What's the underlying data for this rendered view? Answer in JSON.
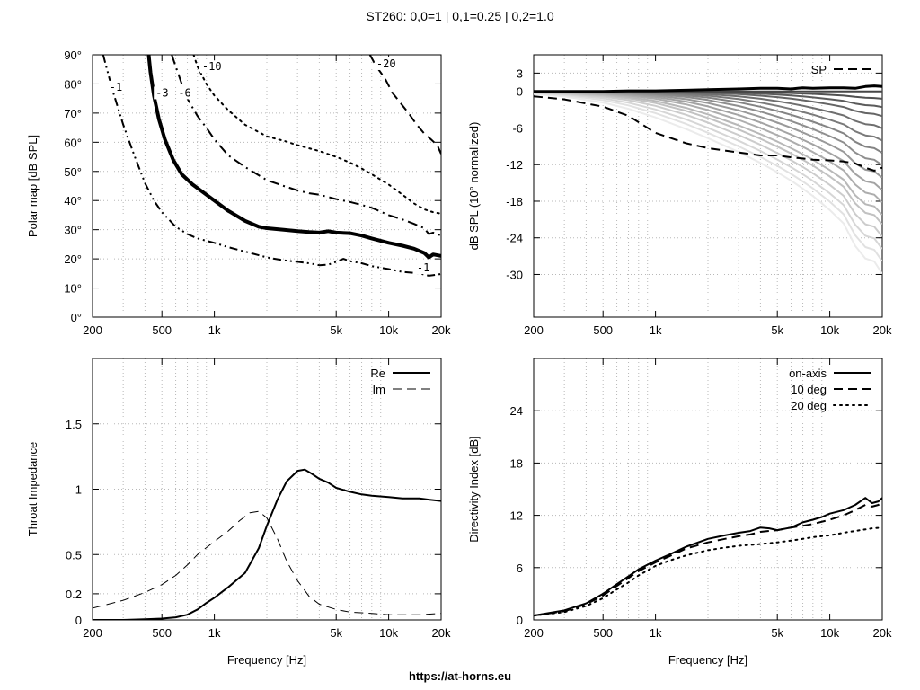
{
  "title": "ST260: 0,0=1 | 0,1=0.25 | 0,2=1.0",
  "footer": "https://at-horns.eu",
  "chart_data": [
    {
      "id": "polar",
      "type": "line",
      "ylabel": "Polar map [dB SPL]",
      "xlabel": "",
      "xscale": "log",
      "xlim": [
        200,
        20000
      ],
      "ylim": [
        0,
        90
      ],
      "xticks": [
        200,
        500,
        1000,
        5000,
        10000,
        20000
      ],
      "xtick_labels": [
        "200",
        "500",
        "1k",
        "5k",
        "10k",
        "20k"
      ],
      "yticks": [
        0,
        10,
        20,
        30,
        40,
        50,
        60,
        70,
        80,
        90
      ],
      "ytick_labels": [
        "0°",
        "10°",
        "20°",
        "30°",
        "40°",
        "50°",
        "60°",
        "70°",
        "80°",
        "90°"
      ],
      "series": [
        {
          "label": "-1",
          "style": "dashdotdot",
          "width": 2,
          "x": [
            230,
            260,
            300,
            350,
            400,
            450,
            500,
            600,
            700,
            800,
            1000,
            1200,
            1500,
            2000,
            2500,
            3000,
            3500,
            4000,
            4500,
            5000,
            5500,
            6000,
            7000,
            8000,
            10000,
            12000,
            15000,
            17000,
            20000
          ],
          "y": [
            90,
            78,
            66,
            55,
            46,
            40,
            36,
            31,
            28.5,
            27,
            25.5,
            24,
            22.5,
            20.5,
            19.5,
            19,
            18.5,
            17.8,
            18,
            19,
            20,
            19.2,
            18.5,
            17.5,
            16.5,
            15.5,
            15,
            14.2,
            14.8
          ]
        },
        {
          "label": "-3",
          "style": "solid",
          "width": 4,
          "x": [
            420,
            430,
            450,
            480,
            520,
            580,
            650,
            750,
            900,
            1000,
            1200,
            1500,
            1800,
            2000,
            2500,
            3000,
            3500,
            4000,
            4500,
            5000,
            6000,
            7000,
            8000,
            10000,
            12000,
            14000,
            16000,
            17000,
            18000,
            20000
          ],
          "y": [
            90,
            84,
            76,
            68,
            61,
            54,
            49,
            45.5,
            42,
            40,
            36.5,
            33,
            31,
            30.5,
            30,
            29.5,
            29.2,
            29,
            29.5,
            29,
            28.8,
            28,
            27,
            25.5,
            24.5,
            23.5,
            22,
            20.5,
            21.5,
            21
          ]
        },
        {
          "label": "-6",
          "style": "dashdot",
          "width": 2,
          "x": [
            570,
            600,
            650,
            700,
            800,
            900,
            1000,
            1200,
            1500,
            2000,
            2500,
            3000,
            3500,
            4000,
            5000,
            6000,
            7000,
            8000,
            10000,
            12000,
            14000,
            16000,
            17000,
            18000,
            20000
          ],
          "y": [
            90,
            86,
            80,
            75,
            69,
            65,
            61,
            55.5,
            51.5,
            47,
            45,
            43.5,
            42.5,
            42,
            40.5,
            39.5,
            38.5,
            37.5,
            35,
            33.5,
            32,
            30.5,
            28.5,
            29,
            28
          ]
        },
        {
          "label": "-10",
          "style": "dotted",
          "width": 2,
          "x": [
            760,
            800,
            900,
            1000,
            1200,
            1500,
            2000,
            2500,
            3000,
            4000,
            5000,
            6000,
            7000,
            8000,
            10000,
            12000,
            14000,
            16000,
            18000,
            20000
          ],
          "y": [
            90,
            86,
            80,
            76,
            71,
            66,
            62,
            60.5,
            59,
            57,
            55,
            53,
            51,
            49,
            45.5,
            42,
            39,
            37,
            36,
            35.5
          ]
        },
        {
          "label": "-20",
          "style": "dashed",
          "width": 2,
          "x": [
            7800,
            8500,
            9500,
            10500,
            11500,
            13000,
            14500,
            16000,
            17500,
            19000,
            20000
          ],
          "y": [
            90,
            86,
            82,
            77,
            74,
            70,
            66,
            63,
            61,
            59,
            56
          ]
        }
      ],
      "contour_labels": [
        {
          "text": "-1",
          "x": 250,
          "y": 78
        },
        {
          "text": "-3",
          "x": 460,
          "y": 76
        },
        {
          "text": "-6",
          "x": 620,
          "y": 76
        },
        {
          "text": "-10",
          "x": 850,
          "y": 85
        },
        {
          "text": "-20",
          "x": 8500,
          "y": 86
        },
        {
          "text": "-1",
          "x": 14500,
          "y": 16
        }
      ]
    },
    {
      "id": "spl",
      "type": "line",
      "ylabel": "dB SPL (10° normalized)",
      "xlabel": "",
      "xscale": "log",
      "xlim": [
        200,
        20000
      ],
      "ylim": [
        -37,
        6
      ],
      "xticks": [
        200,
        500,
        1000,
        5000,
        10000,
        20000
      ],
      "xtick_labels": [
        "200",
        "500",
        "1k",
        "5k",
        "10k",
        "20k"
      ],
      "yticks": [
        3,
        0,
        -6,
        -12,
        -18,
        -24,
        -30
      ],
      "ytick_labels": [
        "3",
        "0",
        "-6",
        "-12",
        "-18",
        "-24",
        "-30"
      ],
      "legend": {
        "placement": "top-right",
        "entries": [
          "SP"
        ]
      },
      "x": [
        200,
        300,
        500,
        700,
        1000,
        1500,
        2000,
        3000,
        4000,
        5000,
        6000,
        7000,
        8000,
        10000,
        12000,
        14000,
        16000,
        18000,
        20000
      ],
      "angle_curves": {
        "angles_deg": [
          0,
          10,
          15,
          20,
          25,
          30,
          35,
          40,
          45,
          50,
          55,
          60,
          65,
          70,
          75,
          80,
          85,
          90
        ],
        "end_values_db": [
          0.8,
          0,
          -1.5,
          -3,
          -4.5,
          -6.5,
          -8.5,
          -10.5,
          -12.5,
          -14.5,
          -16.5,
          -18.5,
          -20.5,
          -22,
          -24,
          -26,
          -28,
          -30
        ],
        "knee_hz": [
          100000,
          100000,
          12000,
          9000,
          7000,
          5500,
          4500,
          3800,
          3200,
          2700,
          2300,
          2000,
          1700,
          1500,
          1300,
          1100,
          950,
          800
        ]
      },
      "series": [
        {
          "name": "SP",
          "style": "dashed",
          "width": 2,
          "y": [
            -0.8,
            -1.3,
            -2.5,
            -4,
            -6.8,
            -8.5,
            -9.3,
            -10,
            -10.5,
            -10.5,
            -10.8,
            -11,
            -11.2,
            -11.3,
            -11.5,
            -11.8,
            -12.5,
            -13,
            -12.5
          ]
        },
        {
          "name": "0°",
          "style": "solid",
          "width": 3,
          "y": [
            0,
            0,
            0,
            0.1,
            0.1,
            0.2,
            0.3,
            0.4,
            0.5,
            0.5,
            0.4,
            0.6,
            0.5,
            0.6,
            0.6,
            0.5,
            0.8,
            0.9,
            0.8
          ]
        }
      ]
    },
    {
      "id": "impedance",
      "type": "line",
      "ylabel": "Throat Impedance",
      "xlabel": "Frequency [Hz]",
      "xscale": "log",
      "xlim": [
        200,
        20000
      ],
      "ylim": [
        0,
        2
      ],
      "xticks": [
        200,
        500,
        1000,
        5000,
        10000,
        20000
      ],
      "xtick_labels": [
        "200",
        "500",
        "1k",
        "5k",
        "10k",
        "20k"
      ],
      "yticks": [
        0,
        0.2,
        0.5,
        1,
        1.5
      ],
      "ytick_labels": [
        "0",
        "0.2",
        "0.5",
        "1",
        "1.5"
      ],
      "legend": {
        "placement": "top-right",
        "entries": [
          "Re",
          "Im"
        ]
      },
      "series": [
        {
          "name": "Re",
          "style": "solid",
          "width": 2,
          "x": [
            200,
            300,
            400,
            500,
            600,
            700,
            800,
            900,
            1000,
            1200,
            1500,
            1800,
            2000,
            2300,
            2600,
            3000,
            3300,
            3600,
            4000,
            4500,
            5000,
            6000,
            7000,
            8000,
            10000,
            12000,
            15000,
            17000,
            20000
          ],
          "y": [
            0,
            0,
            0.005,
            0.01,
            0.02,
            0.04,
            0.08,
            0.13,
            0.17,
            0.25,
            0.36,
            0.55,
            0.72,
            0.92,
            1.06,
            1.14,
            1.15,
            1.12,
            1.08,
            1.05,
            1.01,
            0.98,
            0.96,
            0.95,
            0.94,
            0.93,
            0.93,
            0.92,
            0.91
          ]
        },
        {
          "name": "Im",
          "style": "dashed",
          "width": 1,
          "x": [
            200,
            300,
            400,
            500,
            600,
            700,
            800,
            1000,
            1200,
            1400,
            1600,
            1800,
            2000,
            2300,
            2600,
            3000,
            3500,
            4000,
            5000,
            6000,
            8000,
            10000,
            12000,
            15000,
            20000
          ],
          "y": [
            0.09,
            0.15,
            0.21,
            0.27,
            0.34,
            0.42,
            0.5,
            0.6,
            0.68,
            0.76,
            0.82,
            0.83,
            0.78,
            0.62,
            0.45,
            0.3,
            0.18,
            0.12,
            0.08,
            0.06,
            0.05,
            0.04,
            0.04,
            0.04,
            0.05
          ]
        }
      ]
    },
    {
      "id": "di",
      "type": "line",
      "ylabel": "Directivity Index [dB]",
      "xlabel": "Frequency [Hz]",
      "xscale": "log",
      "xlim": [
        200,
        20000
      ],
      "ylim": [
        0,
        30
      ],
      "xticks": [
        200,
        500,
        1000,
        5000,
        10000,
        20000
      ],
      "xtick_labels": [
        "200",
        "500",
        "1k",
        "5k",
        "10k",
        "20k"
      ],
      "yticks": [
        0,
        6,
        12,
        18,
        24
      ],
      "ytick_labels": [
        "0",
        "6",
        "12",
        "18",
        "24"
      ],
      "legend": {
        "placement": "top-right",
        "entries": [
          "on-axis",
          "10 deg",
          "20 deg"
        ]
      },
      "series": [
        {
          "name": "on-axis",
          "style": "solid",
          "width": 2,
          "x": [
            200,
            300,
            400,
            500,
            600,
            700,
            800,
            1000,
            1200,
            1500,
            2000,
            2500,
            3000,
            3500,
            4000,
            4500,
            5000,
            6000,
            7000,
            8000,
            9000,
            10000,
            12000,
            14000,
            16000,
            17500,
            19000,
            20000
          ],
          "y": [
            0.5,
            1.1,
            1.9,
            3.0,
            4.1,
            5.0,
            5.8,
            6.8,
            7.5,
            8.4,
            9.3,
            9.7,
            10.0,
            10.2,
            10.6,
            10.5,
            10.3,
            10.6,
            11.2,
            11.5,
            11.8,
            12.2,
            12.6,
            13.2,
            14.0,
            13.4,
            13.6,
            14.0
          ]
        },
        {
          "name": "10 deg",
          "style": "dashed",
          "width": 2,
          "x": [
            200,
            300,
            400,
            500,
            600,
            700,
            800,
            1000,
            1200,
            1500,
            2000,
            2500,
            3000,
            3500,
            4000,
            5000,
            6000,
            7000,
            8000,
            10000,
            12000,
            14000,
            16000,
            17500,
            19000,
            20000
          ],
          "y": [
            0.5,
            1.0,
            1.8,
            2.8,
            3.9,
            4.8,
            5.6,
            6.6,
            7.3,
            8.2,
            8.9,
            9.3,
            9.6,
            9.8,
            10.1,
            10.3,
            10.6,
            10.8,
            11.0,
            11.5,
            12.0,
            12.6,
            13.2,
            13.0,
            13.2,
            13.5
          ]
        },
        {
          "name": "20 deg",
          "style": "dotted",
          "width": 2,
          "x": [
            200,
            300,
            400,
            500,
            600,
            700,
            800,
            1000,
            1200,
            1500,
            2000,
            2500,
            3000,
            4000,
            5000,
            6000,
            7000,
            8000,
            10000,
            12000,
            15000,
            17500,
            20000
          ],
          "y": [
            0.5,
            0.9,
            1.6,
            2.5,
            3.5,
            4.3,
            5.1,
            6.2,
            6.8,
            7.4,
            8.0,
            8.3,
            8.5,
            8.7,
            8.9,
            9.1,
            9.3,
            9.5,
            9.7,
            10.0,
            10.3,
            10.5,
            10.6
          ]
        }
      ]
    }
  ]
}
